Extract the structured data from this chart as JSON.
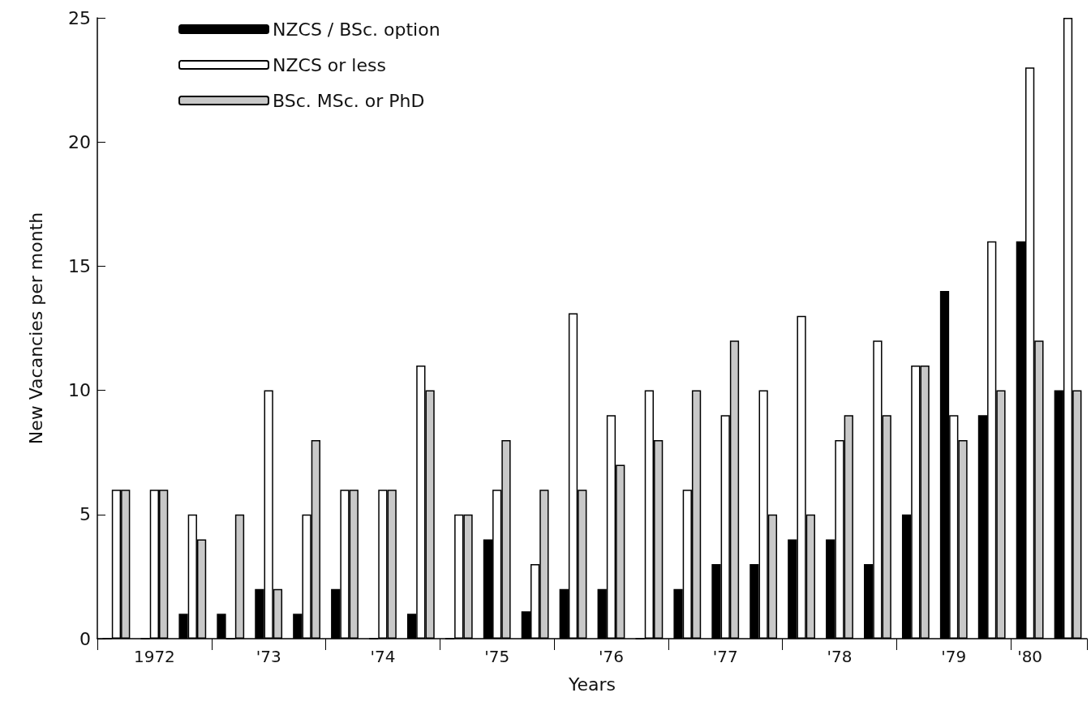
{
  "chart_data": {
    "type": "bar",
    "xlabel": "Years",
    "ylabel": "New Vacancies per month",
    "categories": [
      null,
      "1972",
      null,
      null,
      "'73",
      null,
      null,
      "'74",
      null,
      null,
      "'75",
      null,
      null,
      "'76",
      null,
      null,
      "'77",
      null,
      null,
      "'78",
      null,
      null,
      "'79",
      null,
      "'80",
      null
    ],
    "series": [
      {
        "name": "NZCS / BSc. option",
        "color": "#000000",
        "values": [
          0,
          0,
          1,
          1,
          2,
          1,
          2,
          0,
          1,
          0,
          4,
          1.1,
          2,
          2,
          0,
          2,
          3,
          3,
          4,
          4,
          3,
          5,
          14,
          9,
          16,
          10
        ]
      },
      {
        "name": "NZCS or less",
        "color": "#ffffff",
        "values": [
          6,
          6,
          5,
          0,
          10,
          5,
          6,
          6,
          11,
          5,
          6,
          3,
          13.1,
          9,
          10,
          6,
          9,
          10,
          13,
          8,
          12,
          11,
          9,
          16,
          23,
          25
        ]
      },
      {
        "name": "BSc. MSc. or PhD",
        "color": "#c8c8c8",
        "values": [
          6,
          6,
          4,
          5,
          2,
          8,
          6,
          6,
          10,
          5,
          8,
          6,
          6,
          7,
          8,
          10,
          12,
          5,
          5,
          9,
          9,
          11,
          8,
          10,
          12,
          10
        ]
      }
    ],
    "ylim": [
      0,
      25
    ],
    "yticks": [
      0,
      5,
      10,
      15,
      20,
      25
    ],
    "grid": false,
    "legend": "top left"
  }
}
